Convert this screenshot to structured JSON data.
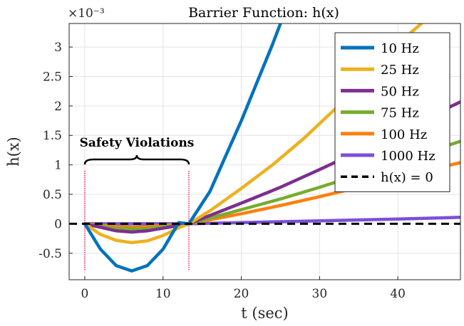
{
  "chart_data": {
    "type": "line",
    "title": "Barrier Function: h(x)",
    "xlabel": "t (sec)",
    "ylabel": "h(x)",
    "y_multiplier": "×10⁻³",
    "xlim": [
      -2,
      48
    ],
    "ylim": [
      -0.95,
      3.4
    ],
    "xticks": [
      0,
      10,
      20,
      30,
      40
    ],
    "yticks": [
      -0.5,
      0,
      0.5,
      1,
      1.5,
      2,
      2.5,
      3
    ],
    "ytick_labels": [
      "-0.5",
      "0",
      "0.5",
      "1",
      "1.5",
      "2",
      "2.5",
      "3"
    ],
    "grid": true,
    "legend_position": "top-right",
    "series": [
      {
        "name": "10 Hz",
        "color": "#0072BD",
        "points": [
          [
            0,
            0
          ],
          [
            2,
            -0.43
          ],
          [
            4,
            -0.71
          ],
          [
            6,
            -0.8
          ],
          [
            8,
            -0.71
          ],
          [
            10,
            -0.43
          ],
          [
            12,
            0.02
          ],
          [
            13.3,
            0
          ],
          [
            16,
            0.55
          ],
          [
            18,
            1.15
          ],
          [
            20,
            1.75
          ],
          [
            22,
            2.4
          ],
          [
            24,
            3.05
          ],
          [
            25,
            3.4
          ]
        ]
      },
      {
        "name": "25 Hz",
        "color": "#EDB120",
        "points": [
          [
            0,
            0
          ],
          [
            2,
            -0.18
          ],
          [
            4,
            -0.28
          ],
          [
            6,
            -0.32
          ],
          [
            8,
            -0.29
          ],
          [
            10,
            -0.2
          ],
          [
            12,
            -0.07
          ],
          [
            13.3,
            0
          ],
          [
            16,
            0.22
          ],
          [
            20,
            0.6
          ],
          [
            24,
            1.0
          ],
          [
            28,
            1.45
          ],
          [
            32,
            1.95
          ],
          [
            36,
            2.5
          ],
          [
            40,
            3.05
          ],
          [
            43,
            3.4
          ]
        ]
      },
      {
        "name": "50 Hz",
        "color": "#7E2F8E",
        "points": [
          [
            0,
            0
          ],
          [
            4,
            -0.12
          ],
          [
            6,
            -0.14
          ],
          [
            8,
            -0.12
          ],
          [
            12,
            -0.03
          ],
          [
            13.3,
            0
          ],
          [
            20,
            0.35
          ],
          [
            25,
            0.62
          ],
          [
            30,
            0.92
          ],
          [
            35,
            1.23
          ],
          [
            40,
            1.55
          ],
          [
            45,
            1.88
          ],
          [
            48,
            2.07
          ]
        ]
      },
      {
        "name": "75 Hz",
        "color": "#77AC30",
        "points": [
          [
            0,
            0
          ],
          [
            4,
            -0.08
          ],
          [
            6,
            -0.09
          ],
          [
            8,
            -0.08
          ],
          [
            12,
            -0.02
          ],
          [
            13.3,
            0
          ],
          [
            20,
            0.24
          ],
          [
            25,
            0.42
          ],
          [
            30,
            0.62
          ],
          [
            35,
            0.83
          ],
          [
            40,
            1.05
          ],
          [
            45,
            1.27
          ],
          [
            48,
            1.4
          ]
        ]
      },
      {
        "name": "100 Hz",
        "color": "#FF7F0E",
        "points": [
          [
            0,
            0
          ],
          [
            4,
            -0.05
          ],
          [
            6,
            -0.06
          ],
          [
            8,
            -0.05
          ],
          [
            12,
            -0.01
          ],
          [
            13.3,
            0
          ],
          [
            20,
            0.17
          ],
          [
            25,
            0.31
          ],
          [
            30,
            0.46
          ],
          [
            35,
            0.62
          ],
          [
            40,
            0.78
          ],
          [
            45,
            0.94
          ],
          [
            48,
            1.04
          ]
        ]
      },
      {
        "name": "1000 Hz",
        "color": "#7D4FD8",
        "points": [
          [
            0,
            0
          ],
          [
            13.3,
            0
          ],
          [
            20,
            0.02
          ],
          [
            30,
            0.05
          ],
          [
            40,
            0.08
          ],
          [
            48,
            0.11
          ]
        ]
      },
      {
        "name": "h(x) = 0",
        "color": "#000000",
        "dashed": true,
        "points": [
          [
            -2,
            0
          ],
          [
            48,
            0
          ]
        ]
      }
    ],
    "annotations": [
      {
        "text": "Safety Violations",
        "bracket_x": [
          0,
          13.3
        ]
      }
    ],
    "violation_markers_x": [
      0,
      13.3
    ],
    "marker_color": "#E0005A"
  }
}
